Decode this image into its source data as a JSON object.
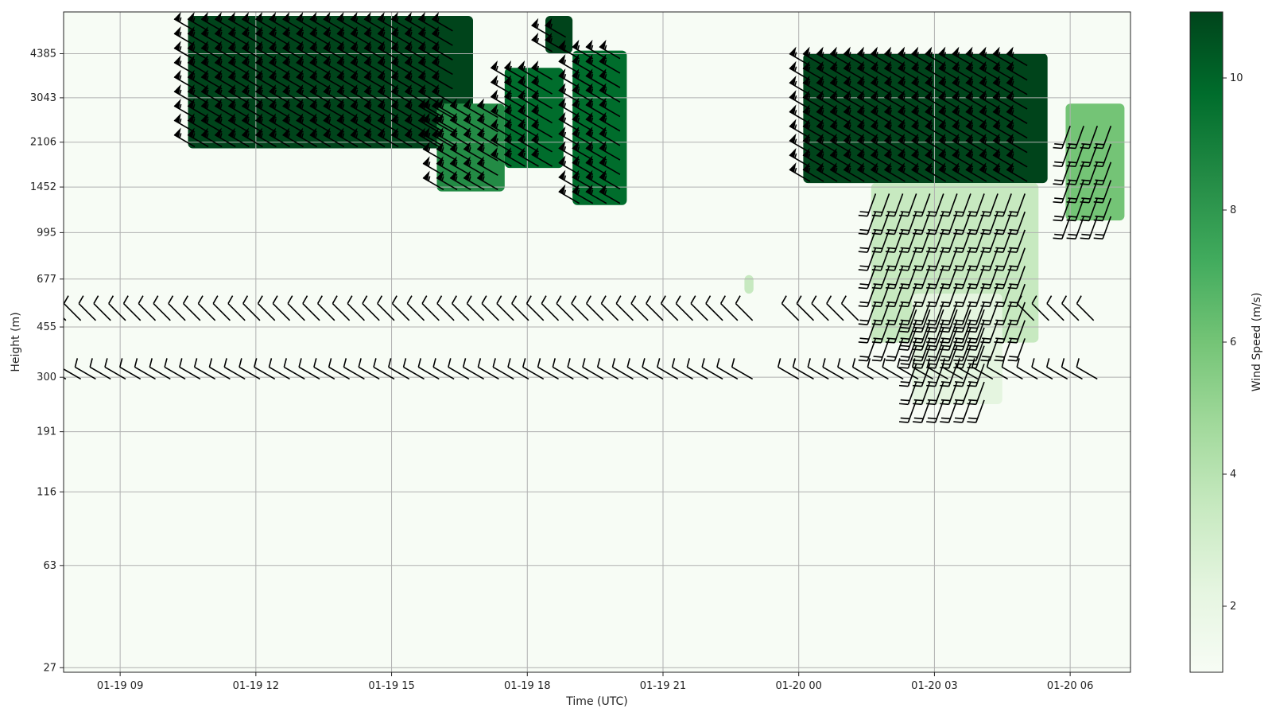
{
  "chart_data": {
    "type": "heatmap",
    "xlabel": "Time (UTC)",
    "ylabel": "Height (m)",
    "colorbar_label": "Wind Speed (m/s)",
    "grid": true,
    "x_range": [
      "2025-01-19 07:45",
      "2025-01-20 07:20"
    ],
    "x_ticks": [
      "01-19 09",
      "01-19 12",
      "01-19 15",
      "01-19 18",
      "01-19 21",
      "01-20 00",
      "01-20 03",
      "01-20 06"
    ],
    "y_scale": "log",
    "y_ticks": [
      "4385",
      "3043",
      "2106",
      "1452",
      "995",
      "677",
      "455",
      "300",
      "191",
      "116",
      "63",
      "27"
    ],
    "colorbar_range": [
      1,
      11
    ],
    "colorbar_ticks": [
      "2",
      "4",
      "6",
      "8",
      "10"
    ],
    "colormap": [
      "#f7fcf5",
      "#e5f5e0",
      "#c7e9c0",
      "#a1d99b",
      "#74c476",
      "#41ab5d",
      "#238b45",
      "#006d2c",
      "#00441b"
    ],
    "wind_speed_regions": [
      {
        "t_start": 10.5,
        "t_end": 16.8,
        "h_low": 2000,
        "h_high": 6000,
        "speed": 10.5
      },
      {
        "t_start": 16.0,
        "t_end": 17.5,
        "h_low": 1400,
        "h_high": 2900,
        "speed": 8.5
      },
      {
        "t_start": 17.5,
        "t_end": 18.8,
        "h_low": 1700,
        "h_high": 3900,
        "speed": 10
      },
      {
        "t_start": 18.4,
        "t_end": 19.0,
        "h_low": 4400,
        "h_high": 6000,
        "speed": 11
      },
      {
        "t_start": 19.0,
        "t_end": 20.2,
        "h_low": 1250,
        "h_high": 4500,
        "speed": 9.5
      },
      {
        "t_start": 22.8,
        "t_end": 23.0,
        "h_low": 600,
        "h_high": 700,
        "speed": 4
      },
      {
        "t_start": 0.1,
        "t_end": 5.5,
        "h_low": 1500,
        "h_high": 4400,
        "speed": 10.5
      },
      {
        "t_start": 1.6,
        "t_end": 5.3,
        "h_low": 400,
        "h_high": 1500,
        "speed": 3
      },
      {
        "t_start": 2.5,
        "t_end": 4.5,
        "h_low": 240,
        "h_high": 600,
        "speed": 2.5
      },
      {
        "t_start": 5.9,
        "t_end": 7.2,
        "h_low": 1100,
        "h_high": 2900,
        "speed": 6.5
      }
    ],
    "wind_barb_levels": [
      {
        "height": 520,
        "t_start": 7.8,
        "t_end": 23.0,
        "direction_deg": 315,
        "speed_kt": 10
      },
      {
        "height": 520,
        "t_start": 0.0,
        "t_end": 1.5,
        "direction_deg": 315,
        "speed_kt": 10
      },
      {
        "height": 520,
        "t_start": 5.2,
        "t_end": 6.8,
        "direction_deg": 315,
        "speed_kt": 10
      },
      {
        "height": 320,
        "t_start": 7.8,
        "t_end": 23.0,
        "direction_deg": 300,
        "speed_kt": 10
      },
      {
        "height": 320,
        "t_start": 0.0,
        "t_end": 6.8,
        "direction_deg": 300,
        "speed_kt": 10
      }
    ]
  }
}
